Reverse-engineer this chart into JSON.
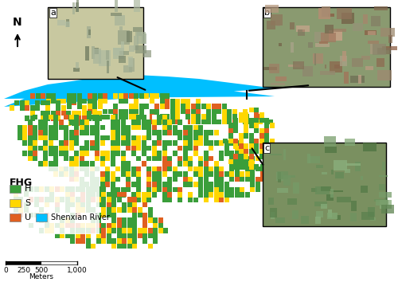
{
  "title": "",
  "legend_title": "FHG",
  "legend_items": [
    {
      "label": "H",
      "color": "#3a9e3a"
    },
    {
      "label": "S",
      "color": "#ffd700"
    },
    {
      "label": "U",
      "color": "#e06020"
    }
  ],
  "river_label": "Shenxian River",
  "river_color": "#00bfff",
  "background_color": "#ffffff",
  "map_colors": {
    "H": "#3a9e3a",
    "S": "#ffd700",
    "U": "#e06020",
    "W": "#ffffff",
    "R": "#00bfff"
  },
  "scale_bar": {
    "values": [
      0,
      250,
      500,
      1000
    ],
    "label": "Meters"
  },
  "photo_a_label": "a",
  "photo_b_label": "b",
  "photo_c_label": "c"
}
